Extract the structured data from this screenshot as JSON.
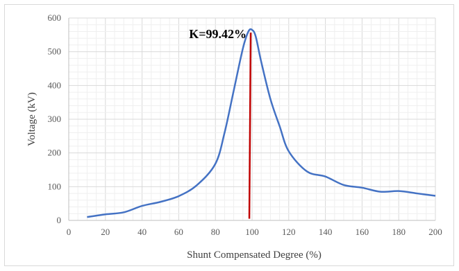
{
  "chart_data": {
    "type": "line",
    "title": "",
    "xlabel": "Shunt Compensated Degree (%)",
    "ylabel": "Voltage (kV)",
    "xlim": [
      0,
      200
    ],
    "ylim": [
      0,
      600
    ],
    "x_ticks": [
      "0",
      "20",
      "40",
      "60",
      "80",
      "100",
      "120",
      "140",
      "160",
      "180",
      "200"
    ],
    "y_ticks": [
      "0",
      "100",
      "200",
      "300",
      "400",
      "500",
      "600"
    ],
    "grid": true,
    "series": [
      {
        "color": "#4472c4",
        "x": [
          10,
          20,
          30,
          40,
          50,
          60,
          70,
          80,
          85,
          90,
          95,
          98,
          100,
          102,
          105,
          110,
          115,
          120,
          130,
          140,
          150,
          160,
          170,
          180,
          190,
          200
        ],
        "y": [
          10,
          18,
          24,
          43,
          55,
          72,
          105,
          168,
          260,
          385,
          510,
          560,
          565,
          545,
          470,
          360,
          280,
          205,
          145,
          130,
          105,
          97,
          85,
          87,
          80,
          73
        ]
      }
    ],
    "annotation": {
      "text": "K=99.42%",
      "x": 98.5,
      "y_top": 565,
      "y_bottom": 5,
      "color": "#c00000"
    }
  }
}
